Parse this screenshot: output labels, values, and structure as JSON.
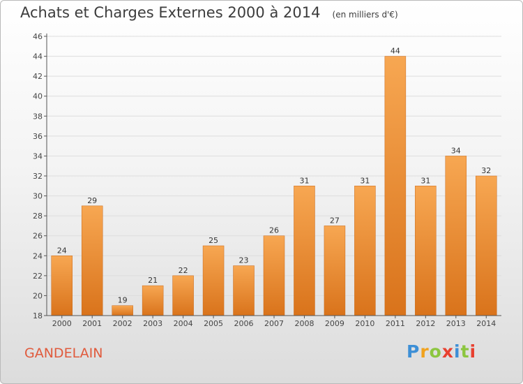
{
  "header": {
    "title": "Achats et Charges Externes 2000 à 2014",
    "subtitle": "(en milliers d'€)"
  },
  "footer": {
    "commune": "GANDELAIN",
    "logo_letters": [
      "P",
      "r",
      "o",
      "x",
      "i",
      "t",
      "i"
    ]
  },
  "colors": {
    "bar_light": "#f7a752",
    "bar_dark": "#d9731b",
    "axis": "#555555",
    "grid": "#dddddd",
    "commune_text": "#e05a3c"
  },
  "chart_data": {
    "type": "bar",
    "title": "Achats et Charges Externes 2000 à 2014",
    "subtitle": "(en milliers d'€)",
    "xlabel": "",
    "ylabel": "",
    "categories": [
      "2000",
      "2001",
      "2002",
      "2003",
      "2004",
      "2005",
      "2006",
      "2007",
      "2008",
      "2009",
      "2010",
      "2011",
      "2012",
      "2013",
      "2014"
    ],
    "values": [
      24,
      29,
      19,
      21,
      22,
      25,
      23,
      26,
      31,
      27,
      31,
      44,
      31,
      34,
      32
    ],
    "ylim": [
      18,
      46
    ],
    "yticks": [
      18,
      20,
      22,
      24,
      26,
      28,
      30,
      32,
      34,
      36,
      38,
      40,
      42,
      44,
      46
    ],
    "grid": true,
    "data_labels": true,
    "legend": "none"
  }
}
